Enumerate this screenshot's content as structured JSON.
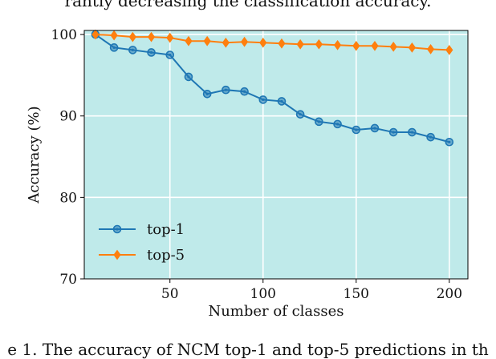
{
  "page_text": {
    "top_line": "rantiy decreasing the classification accuracy.",
    "bottom_line": "e 1. The accuracy of NCM top-1 and top-5 predictions in th"
  },
  "chart_data": {
    "type": "line",
    "title": "",
    "xlabel": "Number of classes",
    "ylabel": "Accuracy (%)",
    "xlim": [
      4,
      210
    ],
    "ylim": [
      70,
      100.5
    ],
    "xticks": [
      50,
      100,
      150,
      200
    ],
    "yticks": [
      70,
      80,
      90,
      100
    ],
    "grid": true,
    "legend_position": "lower-left",
    "background_color": "#bfeaea",
    "x": [
      10,
      20,
      30,
      40,
      50,
      60,
      70,
      80,
      90,
      100,
      110,
      120,
      130,
      140,
      150,
      160,
      170,
      180,
      190,
      200
    ],
    "series": [
      {
        "name": "top-1",
        "color": "#1f77b4",
        "marker": "circle",
        "values": [
          100.0,
          98.4,
          98.1,
          97.8,
          97.5,
          94.8,
          92.7,
          93.2,
          93.0,
          92.0,
          91.8,
          90.2,
          89.3,
          89.0,
          88.3,
          88.5,
          88.0,
          88.0,
          87.4,
          86.8
        ]
      },
      {
        "name": "top-5",
        "color": "#ff7f0e",
        "marker": "diamond",
        "values": [
          100.0,
          99.9,
          99.7,
          99.7,
          99.6,
          99.2,
          99.2,
          99.0,
          99.1,
          99.0,
          98.9,
          98.8,
          98.8,
          98.7,
          98.6,
          98.6,
          98.5,
          98.4,
          98.2,
          98.1
        ]
      }
    ]
  }
}
